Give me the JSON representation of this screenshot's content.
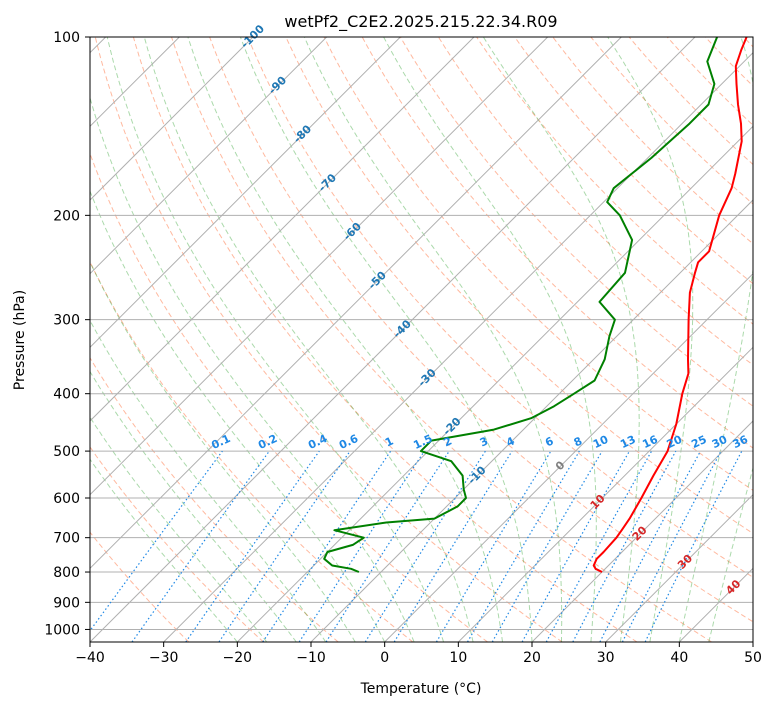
{
  "chart_data": {
    "type": "line",
    "title": "wetPf2_C2E2.2025.215.22.34.R09",
    "xlabel": "Temperature (°C)",
    "ylabel": "Pressure (hPa)",
    "xlim": [
      -40,
      50
    ],
    "ylim": [
      1050,
      100
    ],
    "y_scale": "log",
    "x_ticks": [
      "−40",
      "−30",
      "−20",
      "−10",
      "0",
      "10",
      "20",
      "30",
      "40",
      "50"
    ],
    "y_ticks": [
      {
        "p": 100,
        "label": "100"
      },
      {
        "p": 200,
        "label": "200"
      },
      {
        "p": 300,
        "label": "300"
      },
      {
        "p": 400,
        "label": "400"
      },
      {
        "p": 500,
        "label": "500"
      },
      {
        "p": 600,
        "label": "600"
      },
      {
        "p": 700,
        "label": "700"
      },
      {
        "p": 800,
        "label": "800"
      },
      {
        "p": 900,
        "label": "900"
      },
      {
        "p": 1000,
        "label": "1000"
      }
    ],
    "grid": true,
    "skew": true,
    "colors": {
      "temperature": "#ff0000",
      "dewpoint": "#008000",
      "dry_adiabat": "#ff7f50",
      "moist_adiabat": "#2ca02c",
      "mixing_ratio": "#1e88e5",
      "isotherm": "#7f7f7f",
      "isotherm_label": "#1f77b4",
      "dry_label": "#d62728"
    },
    "series": [
      {
        "values": [
          {
            "p": 800,
            "t": 20.0
          },
          {
            "p": 790,
            "t": 18.7
          },
          {
            "p": 780,
            "t": 18.0
          },
          {
            "p": 760,
            "t": 17.5
          },
          {
            "p": 740,
            "t": 17.5
          },
          {
            "p": 700,
            "t": 17.3
          },
          {
            "p": 680,
            "t": 17.0
          },
          {
            "p": 650,
            "t": 16.5
          },
          {
            "p": 600,
            "t": 15.3
          },
          {
            "p": 550,
            "t": 13.9
          },
          {
            "p": 500,
            "t": 12.5
          },
          {
            "p": 450,
            "t": 10.0
          },
          {
            "p": 400,
            "t": 6.7
          },
          {
            "p": 370,
            "t": 4.8
          },
          {
            "p": 350,
            "t": 2.8
          },
          {
            "p": 300,
            "t": -2.5
          },
          {
            "p": 270,
            "t": -6.0
          },
          {
            "p": 250,
            "t": -8.0
          },
          {
            "p": 240,
            "t": -9.0
          },
          {
            "p": 230,
            "t": -9.0
          },
          {
            "p": 200,
            "t": -12.5
          },
          {
            "p": 180,
            "t": -14.5
          },
          {
            "p": 170,
            "t": -16.0
          },
          {
            "p": 150,
            "t": -19.5
          },
          {
            "p": 140,
            "t": -22.0
          },
          {
            "p": 130,
            "t": -25.0
          },
          {
            "p": 120,
            "t": -28.0
          },
          {
            "p": 112,
            "t": -30.5
          },
          {
            "p": 105,
            "t": -32.0
          },
          {
            "p": 100,
            "t": -33.0
          }
        ]
      },
      {
        "values": [
          {
            "p": 800,
            "t": -13.0
          },
          {
            "p": 790,
            "t": -14.5
          },
          {
            "p": 780,
            "t": -17.5
          },
          {
            "p": 760,
            "t": -19.5
          },
          {
            "p": 740,
            "t": -20.0
          },
          {
            "p": 720,
            "t": -17.5
          },
          {
            "p": 700,
            "t": -17.0
          },
          {
            "p": 680,
            "t": -22.0
          },
          {
            "p": 660,
            "t": -16.0
          },
          {
            "p": 650,
            "t": -10.0
          },
          {
            "p": 620,
            "t": -8.5
          },
          {
            "p": 600,
            "t": -8.5
          },
          {
            "p": 580,
            "t": -10.0
          },
          {
            "p": 550,
            "t": -12.0
          },
          {
            "p": 520,
            "t": -15.5
          },
          {
            "p": 500,
            "t": -21.0
          },
          {
            "p": 480,
            "t": -21.0
          },
          {
            "p": 460,
            "t": -14.0
          },
          {
            "p": 440,
            "t": -10.5
          },
          {
            "p": 420,
            "t": -9.0
          },
          {
            "p": 400,
            "t": -8.0
          },
          {
            "p": 380,
            "t": -7.0
          },
          {
            "p": 350,
            "t": -8.5
          },
          {
            "p": 320,
            "t": -11.0
          },
          {
            "p": 300,
            "t": -12.5
          },
          {
            "p": 280,
            "t": -17.0
          },
          {
            "p": 250,
            "t": -17.5
          },
          {
            "p": 220,
            "t": -21.0
          },
          {
            "p": 200,
            "t": -26.0
          },
          {
            "p": 190,
            "t": -29.5
          },
          {
            "p": 180,
            "t": -30.5
          },
          {
            "p": 160,
            "t": -29.5
          },
          {
            "p": 140,
            "t": -29.0
          },
          {
            "p": 130,
            "t": -29.0
          },
          {
            "p": 120,
            "t": -31.0
          },
          {
            "p": 110,
            "t": -35.0
          },
          {
            "p": 100,
            "t": -37.0
          }
        ]
      }
    ],
    "isotherm_labels": [
      "-100",
      "-90",
      "-80",
      "-70",
      "-60",
      "-50",
      "-40",
      "-30",
      "-20",
      "-10"
    ],
    "isotherm_label_values": [
      -100,
      -90,
      -80,
      -70,
      -60,
      -50,
      -40,
      -30,
      -20,
      -10
    ],
    "mixing_ratio_labels": [
      "0.1",
      "0.2",
      "0.4",
      "0.6",
      "1",
      "1.5",
      "2",
      "3",
      "4",
      "6",
      "8",
      "10",
      "13",
      "16",
      "20",
      "25",
      "30",
      "36"
    ],
    "mixing_ratio_values": [
      0.1,
      0.2,
      0.4,
      0.6,
      1,
      1.5,
      2,
      3,
      4,
      6,
      8,
      10,
      13,
      16,
      20,
      25,
      30,
      36
    ],
    "dry_adiabat_labels": [
      "0",
      "10",
      "20",
      "30",
      "40"
    ],
    "dry_adiabat_label_values": [
      0,
      10,
      20,
      30,
      40
    ]
  }
}
